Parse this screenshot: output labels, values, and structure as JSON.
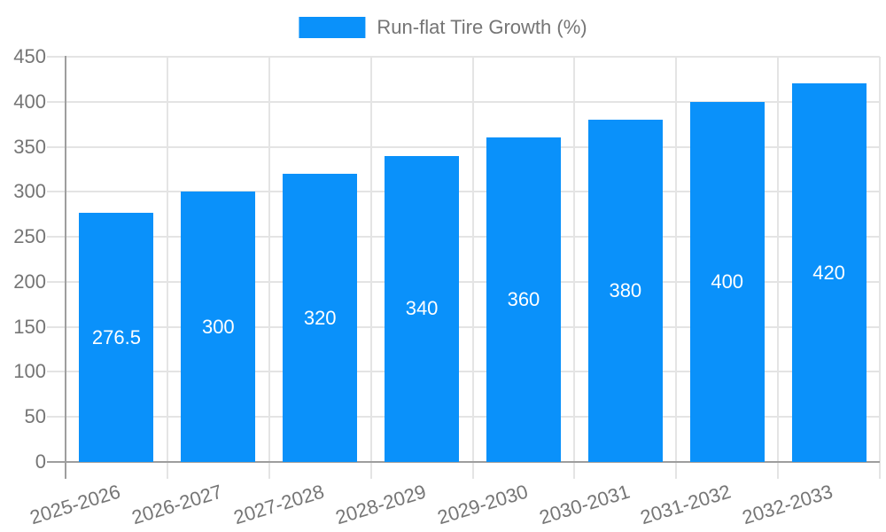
{
  "legend": {
    "label": "Run-flat Tire Growth (%)"
  },
  "colors": {
    "bar": "#0a91fa",
    "axis_line": "#9e9e9e",
    "grid_line": "#e4e4e4",
    "tick_text": "#757575",
    "value_label_text": "#ffffff",
    "background": "#ffffff"
  },
  "chart_data": {
    "type": "bar",
    "title": "Run-flat Tire Growth (%)",
    "series_name": "Run-flat Tire Growth (%)",
    "categories": [
      "2025-2026",
      "2026-2027",
      "2027-2028",
      "2028-2029",
      "2029-2030",
      "2030-2031",
      "2031-2032",
      "2032-2033"
    ],
    "values": [
      276.5,
      300,
      320,
      340,
      360,
      380,
      400,
      420
    ],
    "value_labels": [
      "276.5",
      "300",
      "320",
      "340",
      "360",
      "380",
      "400",
      "420"
    ],
    "xlabel": "",
    "ylabel": "",
    "ylim": [
      0,
      450
    ],
    "ytick_step": 50,
    "ytick_labels": [
      "0",
      "50",
      "100",
      "150",
      "200",
      "250",
      "300",
      "350",
      "400",
      "450"
    ],
    "grid": true,
    "legend_position": "top-center",
    "value_label_position": "center-of-bar",
    "x_label_rotation_deg": -17
  }
}
